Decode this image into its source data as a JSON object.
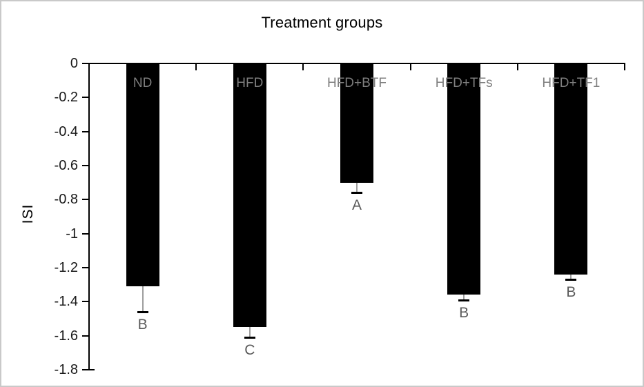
{
  "chart_data": {
    "type": "bar",
    "title": "Treatment groups",
    "xlabel": "",
    "ylabel": "ISI",
    "categories": [
      "ND",
      "HFD",
      "HFD+BTF",
      "HFD+TFs",
      "HFD+TF1"
    ],
    "values": [
      -1.31,
      -1.55,
      -0.7,
      -1.36,
      -1.24
    ],
    "error_minus": [
      0.15,
      0.06,
      0.06,
      0.03,
      0.03
    ],
    "sig_letters": [
      "B",
      "C",
      "A",
      "B",
      "B"
    ],
    "yticks": [
      0,
      -0.2,
      -0.4,
      -0.6,
      -0.8,
      -1,
      -1.2,
      -1.4,
      -1.6,
      -1.8
    ],
    "ytick_labels": [
      "0",
      "-0.2",
      "-0.4",
      "-0.6",
      "-0.8",
      "-1",
      "-1.2",
      "-1.4",
      "-1.6",
      "-1.8"
    ],
    "ylim": [
      0,
      -1.8
    ],
    "grid": "off",
    "legend": "none",
    "colors": {
      "bar": "#000000",
      "axis": "#000000",
      "category_label": "#7f7f7f",
      "sig_letter": "#5a5a5a",
      "error_line": "#9e9e9e",
      "error_cap": "#000000",
      "frame_border": "#c9c9c9"
    }
  }
}
